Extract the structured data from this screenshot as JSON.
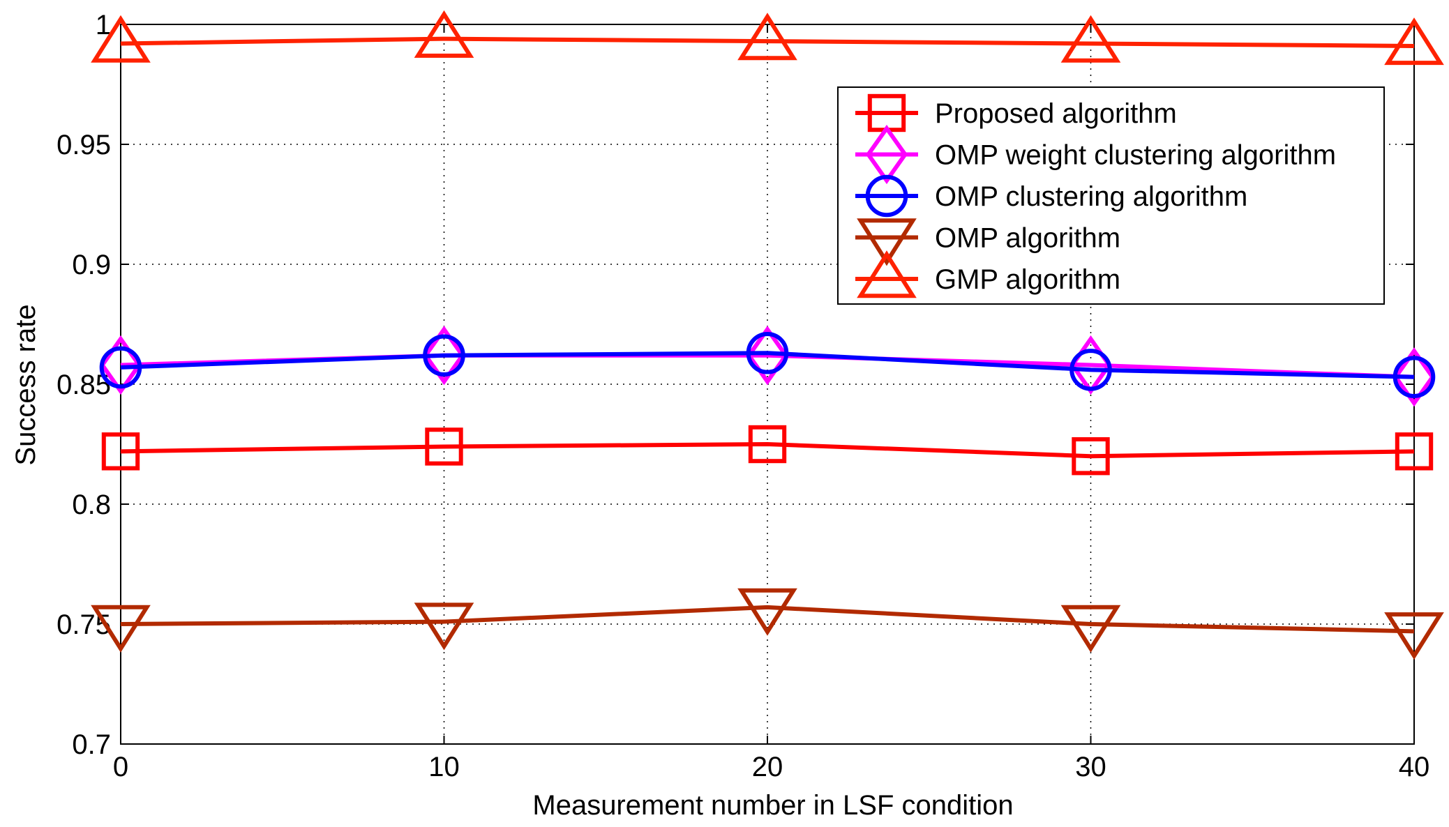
{
  "chart_data": {
    "type": "line",
    "title": "",
    "xlabel": "Measurement number in LSF condition",
    "ylabel": "Success rate",
    "xlim": [
      0,
      40
    ],
    "ylim": [
      0.7,
      1.0
    ],
    "xticks": [
      0,
      10,
      20,
      30,
      40
    ],
    "yticks": [
      0.7,
      0.75,
      0.8,
      0.85,
      0.9,
      0.95,
      1.0
    ],
    "xtick_labels": [
      "0",
      "10",
      "20",
      "30",
      "40"
    ],
    "ytick_labels": [
      "0.7",
      "0.75",
      "0.8",
      "0.85",
      "0.9",
      "0.95",
      "1"
    ],
    "grid": true,
    "legend_position": "top-right",
    "x": [
      0,
      10,
      20,
      30,
      40
    ],
    "series": [
      {
        "name": "Proposed algorithm",
        "values": [
          0.822,
          0.824,
          0.825,
          0.82,
          0.822
        ],
        "color": "#ff0000",
        "marker": "square"
      },
      {
        "name": "OMP weight clustering algorithm",
        "values": [
          0.858,
          0.862,
          0.862,
          0.858,
          0.853
        ],
        "color": "#ff00ff",
        "marker": "diamond"
      },
      {
        "name": "OMP clustering algorithm",
        "values": [
          0.857,
          0.862,
          0.863,
          0.856,
          0.853
        ],
        "color": "#0000ff",
        "marker": "circle"
      },
      {
        "name": "OMP algorithm",
        "values": [
          0.75,
          0.751,
          0.757,
          0.75,
          0.747
        ],
        "color": "#b22a00",
        "marker": "triangle-down"
      },
      {
        "name": "GMP algorithm",
        "values": [
          0.992,
          0.994,
          0.993,
          0.992,
          0.991
        ],
        "color": "#ff2200",
        "marker": "triangle-up"
      }
    ]
  }
}
